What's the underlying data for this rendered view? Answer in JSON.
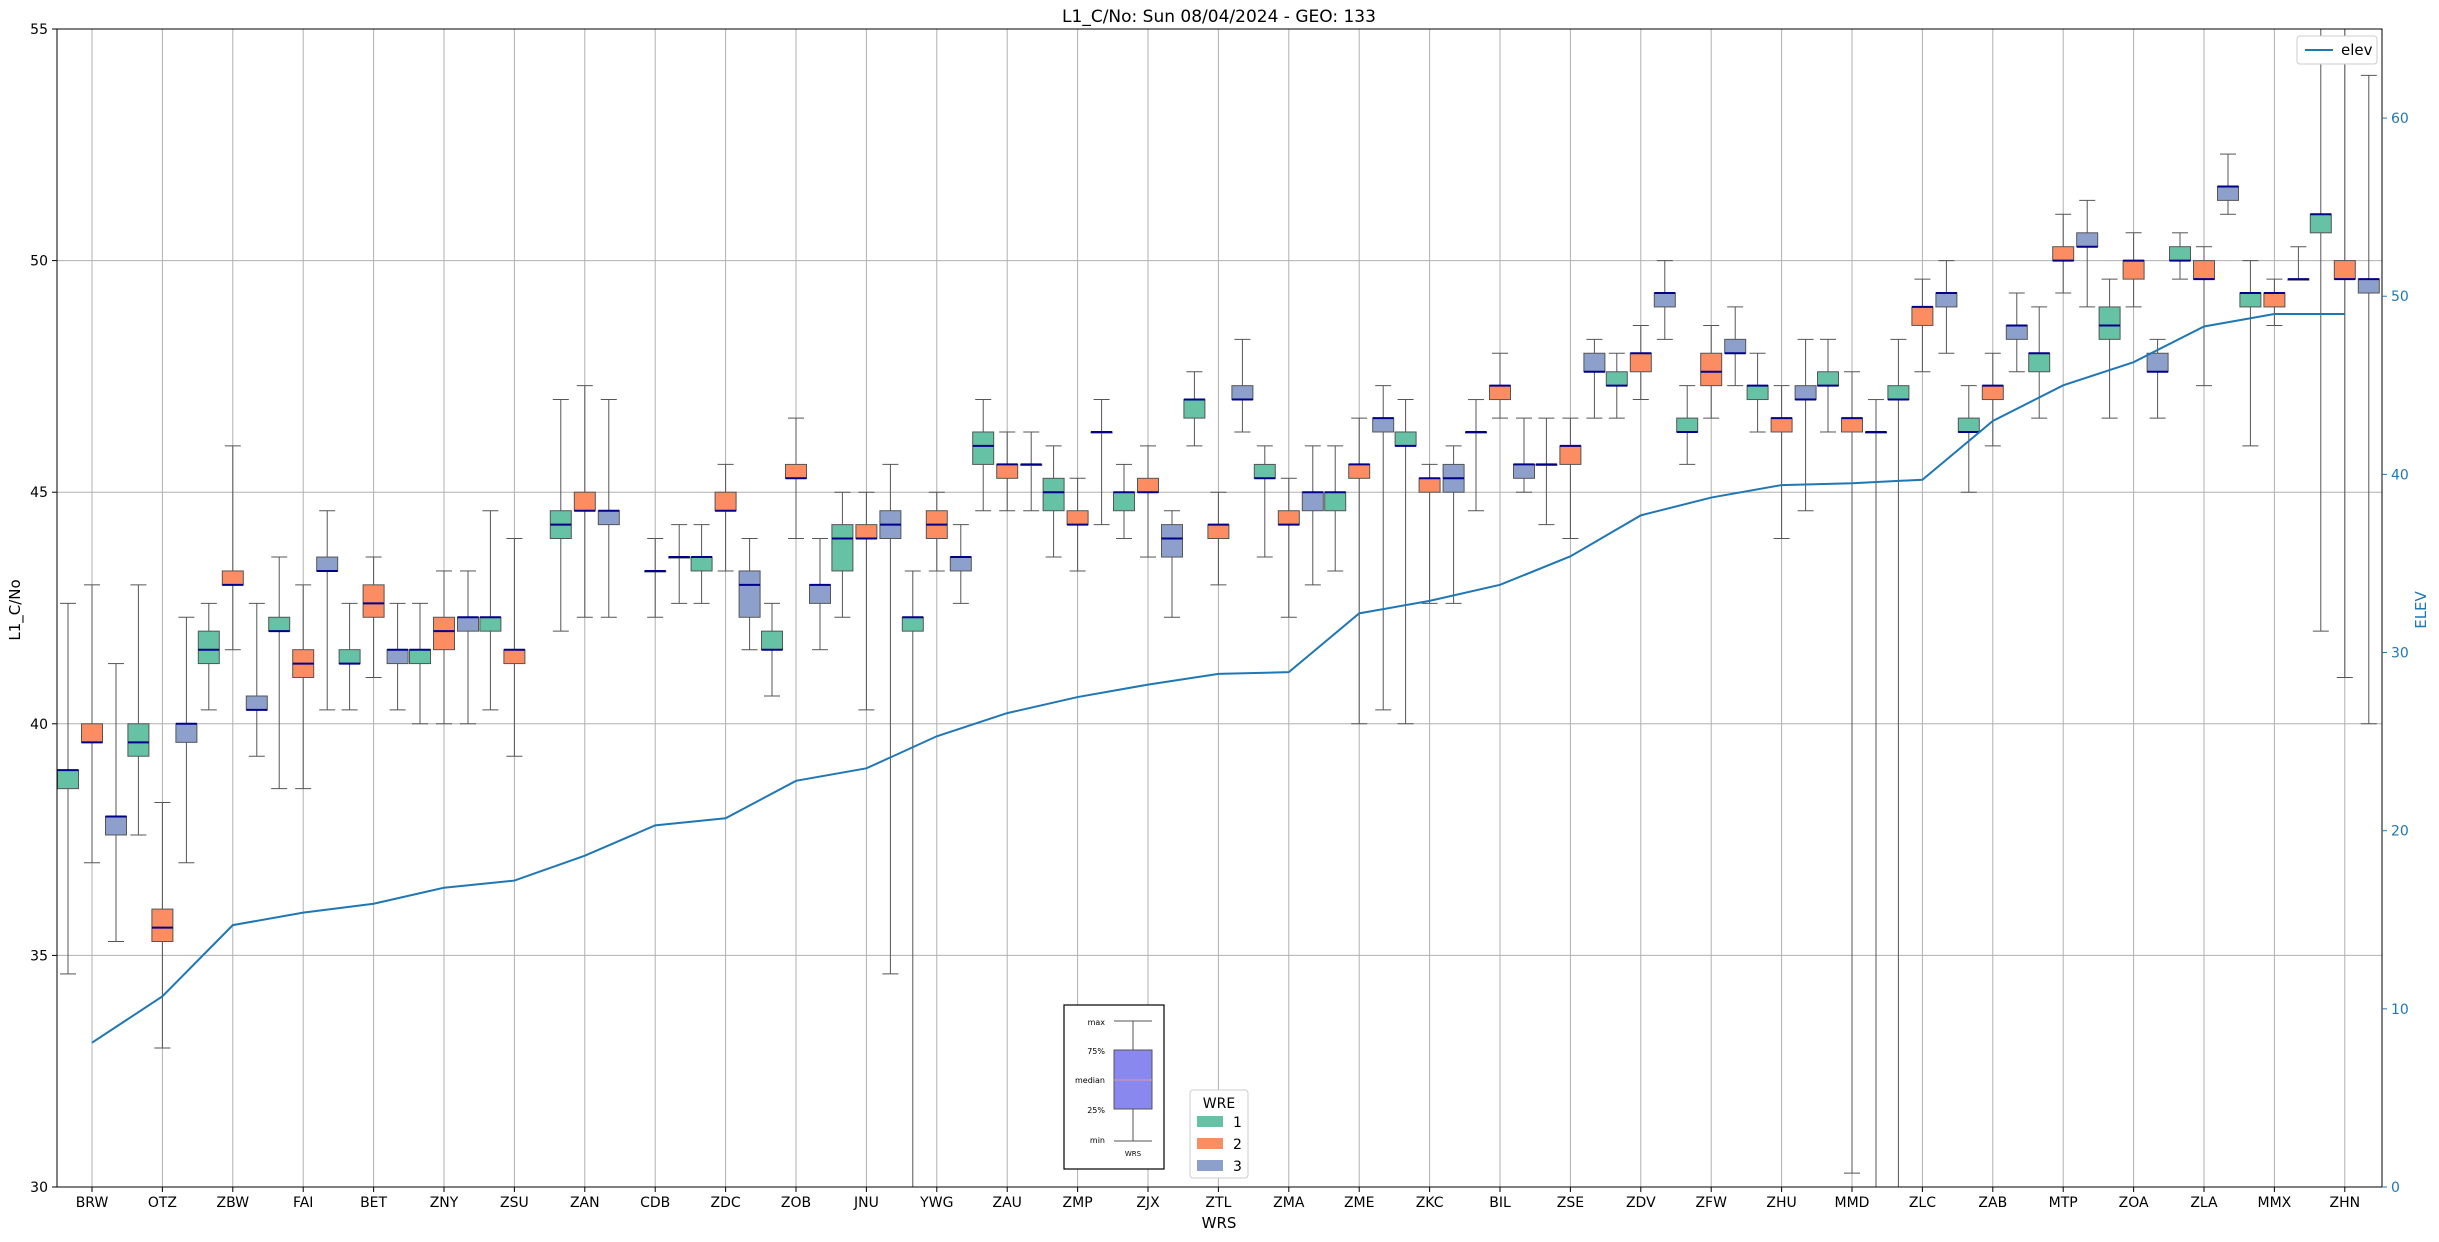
{
  "chart_data": {
    "type": "box",
    "title": "L1_C/No: Sun 08/04/2024 - GEO: 133",
    "xlabel": "WRS",
    "ylabel": "L1_C/No",
    "y2label": "ELEV",
    "ylim": [
      30,
      55
    ],
    "y2lim": [
      0,
      65
    ],
    "yticks": [
      30,
      35,
      40,
      45,
      50,
      55
    ],
    "y2ticks": [
      0,
      10,
      20,
      30,
      40,
      50,
      60
    ],
    "grid": true,
    "categories": [
      "BRW",
      "OTZ",
      "ZBW",
      "FAI",
      "BET",
      "ZNY",
      "ZSU",
      "ZAN",
      "CDB",
      "ZDC",
      "ZOB",
      "JNU",
      "YWG",
      "ZAU",
      "ZMP",
      "ZJX",
      "ZTL",
      "ZMA",
      "ZME",
      "ZKC",
      "BIL",
      "ZSE",
      "ZDV",
      "ZFW",
      "ZHU",
      "MMD",
      "ZLC",
      "ZAB",
      "MTP",
      "ZOA",
      "ZLA",
      "MMX",
      "ZHN"
    ],
    "wre_colors": {
      "1": "#66c2a5",
      "2": "#fc8d62",
      "3": "#8da0cb"
    },
    "median_color": "#00008b",
    "boxes": [
      {
        "cat": "BRW",
        "wre": 1,
        "min": 34.6,
        "q1": 38.6,
        "med": 39.0,
        "q3": 39.0,
        "max": 42.6
      },
      {
        "cat": "BRW",
        "wre": 2,
        "min": 37.0,
        "q1": 39.6,
        "med": 39.6,
        "q3": 40.0,
        "max": 43.0
      },
      {
        "cat": "BRW",
        "wre": 3,
        "min": 35.3,
        "q1": 37.6,
        "med": 38.0,
        "q3": 38.0,
        "max": 41.3
      },
      {
        "cat": "OTZ",
        "wre": 1,
        "min": 37.6,
        "q1": 39.3,
        "med": 39.6,
        "q3": 40.0,
        "max": 43.0
      },
      {
        "cat": "OTZ",
        "wre": 2,
        "min": 33.0,
        "q1": 35.3,
        "med": 35.6,
        "q3": 36.0,
        "max": 38.3
      },
      {
        "cat": "OTZ",
        "wre": 3,
        "min": 37.0,
        "q1": 39.6,
        "med": 40.0,
        "q3": 40.0,
        "max": 42.3
      },
      {
        "cat": "ZBW",
        "wre": 1,
        "min": 40.3,
        "q1": 41.3,
        "med": 41.6,
        "q3": 42.0,
        "max": 42.6
      },
      {
        "cat": "ZBW",
        "wre": 2,
        "min": 41.6,
        "q1": 43.0,
        "med": 43.0,
        "q3": 43.3,
        "max": 46.0
      },
      {
        "cat": "ZBW",
        "wre": 3,
        "min": 39.3,
        "q1": 40.3,
        "med": 40.3,
        "q3": 40.6,
        "max": 42.6
      },
      {
        "cat": "FAI",
        "wre": 1,
        "min": 38.6,
        "q1": 42.0,
        "med": 42.0,
        "q3": 42.3,
        "max": 43.6
      },
      {
        "cat": "FAI",
        "wre": 2,
        "min": 38.6,
        "q1": 41.0,
        "med": 41.3,
        "q3": 41.6,
        "max": 43.0
      },
      {
        "cat": "FAI",
        "wre": 3,
        "min": 40.3,
        "q1": 43.3,
        "med": 43.3,
        "q3": 43.6,
        "max": 44.6
      },
      {
        "cat": "BET",
        "wre": 1,
        "min": 40.3,
        "q1": 41.3,
        "med": 41.3,
        "q3": 41.6,
        "max": 42.6
      },
      {
        "cat": "BET",
        "wre": 2,
        "min": 41.0,
        "q1": 42.3,
        "med": 42.6,
        "q3": 43.0,
        "max": 43.6
      },
      {
        "cat": "BET",
        "wre": 3,
        "min": 40.3,
        "q1": 41.3,
        "med": 41.6,
        "q3": 41.6,
        "max": 42.6
      },
      {
        "cat": "ZNY",
        "wre": 1,
        "min": 40.0,
        "q1": 41.3,
        "med": 41.6,
        "q3": 41.6,
        "max": 42.6
      },
      {
        "cat": "ZNY",
        "wre": 2,
        "min": 40.0,
        "q1": 41.6,
        "med": 42.0,
        "q3": 42.3,
        "max": 43.3
      },
      {
        "cat": "ZNY",
        "wre": 3,
        "min": 40.0,
        "q1": 42.0,
        "med": 42.3,
        "q3": 42.3,
        "max": 43.3
      },
      {
        "cat": "ZSU",
        "wre": 1,
        "min": 40.3,
        "q1": 42.0,
        "med": 42.3,
        "q3": 42.3,
        "max": 44.6
      },
      {
        "cat": "ZSU",
        "wre": 2,
        "min": 39.3,
        "q1": 41.3,
        "med": 41.6,
        "q3": 41.6,
        "max": 44.0
      },
      {
        "cat": "ZAN",
        "wre": 1,
        "min": 42.0,
        "q1": 44.0,
        "med": 44.3,
        "q3": 44.6,
        "max": 47.0
      },
      {
        "cat": "ZAN",
        "wre": 2,
        "min": 42.3,
        "q1": 44.6,
        "med": 44.6,
        "q3": 45.0,
        "max": 47.3
      },
      {
        "cat": "ZAN",
        "wre": 3,
        "min": 42.3,
        "q1": 44.3,
        "med": 44.6,
        "q3": 44.6,
        "max": 47.0
      },
      {
        "cat": "CDB",
        "wre": 2,
        "min": 42.3,
        "q1": 43.3,
        "med": 43.3,
        "q3": 43.3,
        "max": 44.0
      },
      {
        "cat": "CDB",
        "wre": 3,
        "min": 42.6,
        "q1": 43.6,
        "med": 43.6,
        "q3": 43.6,
        "max": 44.3
      },
      {
        "cat": "ZDC",
        "wre": 1,
        "min": 42.6,
        "q1": 43.3,
        "med": 43.6,
        "q3": 43.6,
        "max": 44.3
      },
      {
        "cat": "ZDC",
        "wre": 2,
        "min": 43.3,
        "q1": 44.6,
        "med": 44.6,
        "q3": 45.0,
        "max": 45.6
      },
      {
        "cat": "ZDC",
        "wre": 3,
        "min": 41.6,
        "q1": 42.3,
        "med": 43.0,
        "q3": 43.3,
        "max": 44.0
      },
      {
        "cat": "ZOB",
        "wre": 1,
        "min": 40.6,
        "q1": 41.6,
        "med": 41.6,
        "q3": 42.0,
        "max": 42.6
      },
      {
        "cat": "ZOB",
        "wre": 2,
        "min": 44.0,
        "q1": 45.3,
        "med": 45.3,
        "q3": 45.6,
        "max": 46.6
      },
      {
        "cat": "ZOB",
        "wre": 3,
        "min": 41.6,
        "q1": 42.6,
        "med": 43.0,
        "q3": 43.0,
        "max": 44.0
      },
      {
        "cat": "JNU",
        "wre": 1,
        "min": 42.3,
        "q1": 43.3,
        "med": 44.0,
        "q3": 44.3,
        "max": 45.0
      },
      {
        "cat": "JNU",
        "wre": 2,
        "min": 40.3,
        "q1": 44.0,
        "med": 44.0,
        "q3": 44.3,
        "max": 45.0
      },
      {
        "cat": "JNU",
        "wre": 3,
        "min": 34.6,
        "q1": 44.0,
        "med": 44.3,
        "q3": 44.6,
        "max": 45.6
      },
      {
        "cat": "YWG",
        "wre": 1,
        "min": 30.0,
        "q1": 42.0,
        "med": 42.3,
        "q3": 42.3,
        "max": 43.3
      },
      {
        "cat": "YWG",
        "wre": 2,
        "min": 43.3,
        "q1": 44.0,
        "med": 44.3,
        "q3": 44.6,
        "max": 45.0
      },
      {
        "cat": "YWG",
        "wre": 3,
        "min": 42.6,
        "q1": 43.3,
        "med": 43.6,
        "q3": 43.6,
        "max": 44.3
      },
      {
        "cat": "ZAU",
        "wre": 1,
        "min": 44.6,
        "q1": 45.6,
        "med": 46.0,
        "q3": 46.3,
        "max": 47.0
      },
      {
        "cat": "ZAU",
        "wre": 2,
        "min": 44.6,
        "q1": 45.3,
        "med": 45.6,
        "q3": 45.6,
        "max": 46.3
      },
      {
        "cat": "ZAU",
        "wre": 3,
        "min": 44.6,
        "q1": 45.6,
        "med": 45.6,
        "q3": 45.6,
        "max": 46.3
      },
      {
        "cat": "ZMP",
        "wre": 1,
        "min": 43.6,
        "q1": 44.6,
        "med": 45.0,
        "q3": 45.3,
        "max": 46.0
      },
      {
        "cat": "ZMP",
        "wre": 2,
        "min": 43.3,
        "q1": 44.3,
        "med": 44.3,
        "q3": 44.6,
        "max": 45.3
      },
      {
        "cat": "ZMP",
        "wre": 3,
        "min": 44.3,
        "q1": 46.3,
        "med": 46.3,
        "q3": 46.3,
        "max": 47.0
      },
      {
        "cat": "ZJX",
        "wre": 1,
        "min": 44.0,
        "q1": 44.6,
        "med": 45.0,
        "q3": 45.0,
        "max": 45.6
      },
      {
        "cat": "ZJX",
        "wre": 2,
        "min": 43.6,
        "q1": 45.0,
        "med": 45.0,
        "q3": 45.3,
        "max": 46.0
      },
      {
        "cat": "ZJX",
        "wre": 3,
        "min": 42.3,
        "q1": 43.6,
        "med": 44.0,
        "q3": 44.3,
        "max": 44.6
      },
      {
        "cat": "ZTL",
        "wre": 1,
        "min": 46.0,
        "q1": 46.6,
        "med": 47.0,
        "q3": 47.0,
        "max": 47.6
      },
      {
        "cat": "ZTL",
        "wre": 2,
        "min": 43.0,
        "q1": 44.0,
        "med": 44.3,
        "q3": 44.3,
        "max": 45.0
      },
      {
        "cat": "ZTL",
        "wre": 3,
        "min": 46.3,
        "q1": 47.0,
        "med": 47.0,
        "q3": 47.3,
        "max": 48.3
      },
      {
        "cat": "ZMA",
        "wre": 1,
        "min": 43.6,
        "q1": 45.3,
        "med": 45.3,
        "q3": 45.6,
        "max": 46.0
      },
      {
        "cat": "ZMA",
        "wre": 2,
        "min": 42.3,
        "q1": 44.3,
        "med": 44.3,
        "q3": 44.6,
        "max": 45.3
      },
      {
        "cat": "ZMA",
        "wre": 3,
        "min": 43.0,
        "q1": 44.6,
        "med": 45.0,
        "q3": 45.0,
        "max": 46.0
      },
      {
        "cat": "ZME",
        "wre": 1,
        "min": 43.3,
        "q1": 44.6,
        "med": 45.0,
        "q3": 45.0,
        "max": 46.0
      },
      {
        "cat": "ZME",
        "wre": 2,
        "min": 40.0,
        "q1": 45.3,
        "med": 45.6,
        "q3": 45.6,
        "max": 46.6
      },
      {
        "cat": "ZME",
        "wre": 3,
        "min": 40.3,
        "q1": 46.3,
        "med": 46.6,
        "q3": 46.6,
        "max": 47.3
      },
      {
        "cat": "ZKC",
        "wre": 1,
        "min": 40.0,
        "q1": 46.0,
        "med": 46.0,
        "q3": 46.3,
        "max": 47.0
      },
      {
        "cat": "ZKC",
        "wre": 2,
        "min": 42.6,
        "q1": 45.0,
        "med": 45.3,
        "q3": 45.3,
        "max": 45.6
      },
      {
        "cat": "ZKC",
        "wre": 3,
        "min": 42.6,
        "q1": 45.0,
        "med": 45.3,
        "q3": 45.6,
        "max": 46.0
      },
      {
        "cat": "BIL",
        "wre": 1,
        "min": 44.6,
        "q1": 46.3,
        "med": 46.3,
        "q3": 46.3,
        "max": 47.0
      },
      {
        "cat": "BIL",
        "wre": 2,
        "min": 46.6,
        "q1": 47.0,
        "med": 47.3,
        "q3": 47.3,
        "max": 48.0
      },
      {
        "cat": "BIL",
        "wre": 3,
        "min": 45.0,
        "q1": 45.3,
        "med": 45.6,
        "q3": 45.6,
        "max": 46.6
      },
      {
        "cat": "ZSE",
        "wre": 1,
        "min": 44.3,
        "q1": 45.6,
        "med": 45.6,
        "q3": 45.6,
        "max": 46.6
      },
      {
        "cat": "ZSE",
        "wre": 2,
        "min": 44.0,
        "q1": 45.6,
        "med": 46.0,
        "q3": 46.0,
        "max": 46.6
      },
      {
        "cat": "ZSE",
        "wre": 3,
        "min": 46.6,
        "q1": 47.6,
        "med": 47.6,
        "q3": 48.0,
        "max": 48.3
      },
      {
        "cat": "ZDV",
        "wre": 1,
        "min": 46.6,
        "q1": 47.3,
        "med": 47.3,
        "q3": 47.6,
        "max": 48.0
      },
      {
        "cat": "ZDV",
        "wre": 2,
        "min": 47.0,
        "q1": 47.6,
        "med": 48.0,
        "q3": 48.0,
        "max": 48.6
      },
      {
        "cat": "ZDV",
        "wre": 3,
        "min": 48.3,
        "q1": 49.0,
        "med": 49.3,
        "q3": 49.3,
        "max": 50.0
      },
      {
        "cat": "ZFW",
        "wre": 1,
        "min": 45.6,
        "q1": 46.3,
        "med": 46.3,
        "q3": 46.6,
        "max": 47.3
      },
      {
        "cat": "ZFW",
        "wre": 2,
        "min": 46.6,
        "q1": 47.3,
        "med": 47.6,
        "q3": 48.0,
        "max": 48.6
      },
      {
        "cat": "ZFW",
        "wre": 3,
        "min": 47.3,
        "q1": 48.0,
        "med": 48.0,
        "q3": 48.3,
        "max": 49.0
      },
      {
        "cat": "ZHU",
        "wre": 1,
        "min": 46.3,
        "q1": 47.0,
        "med": 47.3,
        "q3": 47.3,
        "max": 48.0
      },
      {
        "cat": "ZHU",
        "wre": 2,
        "min": 44.0,
        "q1": 46.3,
        "med": 46.6,
        "q3": 46.6,
        "max": 47.3
      },
      {
        "cat": "ZHU",
        "wre": 3,
        "min": 44.6,
        "q1": 47.0,
        "med": 47.0,
        "q3": 47.3,
        "max": 48.3
      },
      {
        "cat": "MMD",
        "wre": 1,
        "min": 46.3,
        "q1": 47.3,
        "med": 47.3,
        "q3": 47.6,
        "max": 48.3
      },
      {
        "cat": "MMD",
        "wre": 2,
        "min": 30.3,
        "q1": 46.3,
        "med": 46.6,
        "q3": 46.6,
        "max": 47.6
      },
      {
        "cat": "MMD",
        "wre": 3,
        "min": 30.0,
        "q1": 46.3,
        "med": 46.3,
        "q3": 46.3,
        "max": 47.0
      },
      {
        "cat": "ZLC",
        "wre": 1,
        "min": 30.0,
        "q1": 47.0,
        "med": 47.0,
        "q3": 47.3,
        "max": 48.3
      },
      {
        "cat": "ZLC",
        "wre": 2,
        "min": 47.6,
        "q1": 48.6,
        "med": 49.0,
        "q3": 49.0,
        "max": 49.6
      },
      {
        "cat": "ZLC",
        "wre": 3,
        "min": 48.0,
        "q1": 49.0,
        "med": 49.3,
        "q3": 49.3,
        "max": 50.0
      },
      {
        "cat": "ZAB",
        "wre": 1,
        "min": 45.0,
        "q1": 46.3,
        "med": 46.3,
        "q3": 46.6,
        "max": 47.3
      },
      {
        "cat": "ZAB",
        "wre": 2,
        "min": 46.0,
        "q1": 47.0,
        "med": 47.3,
        "q3": 47.3,
        "max": 48.0
      },
      {
        "cat": "ZAB",
        "wre": 3,
        "min": 47.6,
        "q1": 48.3,
        "med": 48.6,
        "q3": 48.6,
        "max": 49.3
      },
      {
        "cat": "MTP",
        "wre": 1,
        "min": 46.6,
        "q1": 47.6,
        "med": 48.0,
        "q3": 48.0,
        "max": 49.0
      },
      {
        "cat": "MTP",
        "wre": 2,
        "min": 49.3,
        "q1": 50.0,
        "med": 50.0,
        "q3": 50.3,
        "max": 51.0
      },
      {
        "cat": "MTP",
        "wre": 3,
        "min": 49.0,
        "q1": 50.3,
        "med": 50.3,
        "q3": 50.6,
        "max": 51.3
      },
      {
        "cat": "ZOA",
        "wre": 1,
        "min": 46.6,
        "q1": 48.3,
        "med": 48.6,
        "q3": 49.0,
        "max": 49.6
      },
      {
        "cat": "ZOA",
        "wre": 2,
        "min": 49.0,
        "q1": 49.6,
        "med": 50.0,
        "q3": 50.0,
        "max": 50.6
      },
      {
        "cat": "ZOA",
        "wre": 3,
        "min": 46.6,
        "q1": 47.6,
        "med": 47.6,
        "q3": 48.0,
        "max": 48.3
      },
      {
        "cat": "ZLA",
        "wre": 1,
        "min": 49.6,
        "q1": 50.0,
        "med": 50.0,
        "q3": 50.3,
        "max": 50.6
      },
      {
        "cat": "ZLA",
        "wre": 2,
        "min": 47.3,
        "q1": 49.6,
        "med": 49.6,
        "q3": 50.0,
        "max": 50.3
      },
      {
        "cat": "ZLA",
        "wre": 3,
        "min": 51.0,
        "q1": 51.3,
        "med": 51.6,
        "q3": 51.6,
        "max": 52.3
      },
      {
        "cat": "MMX",
        "wre": 1,
        "min": 46.0,
        "q1": 49.0,
        "med": 49.3,
        "q3": 49.3,
        "max": 50.0
      },
      {
        "cat": "MMX",
        "wre": 2,
        "min": 48.6,
        "q1": 49.0,
        "med": 49.3,
        "q3": 49.3,
        "max": 49.6
      },
      {
        "cat": "MMX",
        "wre": 3,
        "min": 49.6,
        "q1": 49.6,
        "med": 49.6,
        "q3": 49.6,
        "max": 50.3
      },
      {
        "cat": "ZHN",
        "wre": 1,
        "min": 42.0,
        "q1": 50.6,
        "med": 51.0,
        "q3": 51.0,
        "max": 55.0
      },
      {
        "cat": "ZHN",
        "wre": 2,
        "min": 41.0,
        "q1": 49.6,
        "med": 49.6,
        "q3": 50.0,
        "max": 55.0
      },
      {
        "cat": "ZHN",
        "wre": 3,
        "min": 40.0,
        "q1": 49.3,
        "med": 49.6,
        "q3": 49.6,
        "max": 54.0
      }
    ],
    "elev_series": {
      "name": "elev",
      "color": "#1f77b4",
      "values": [
        8.1,
        10.7,
        14.7,
        15.4,
        15.9,
        16.8,
        17.2,
        18.6,
        20.3,
        20.7,
        22.8,
        23.5,
        25.3,
        26.6,
        27.5,
        28.2,
        28.8,
        28.9,
        32.2,
        32.9,
        33.8,
        35.4,
        37.7,
        38.7,
        39.4,
        39.5,
        39.7,
        43.0,
        45.0,
        46.3,
        48.3,
        49.0,
        49.0
      ]
    },
    "legend_elev": {
      "label": "elev",
      "position": "top-right"
    },
    "legend_wre": {
      "title": "WRE",
      "labels": [
        "1",
        "2",
        "3"
      ],
      "position": "bottom-center"
    },
    "inset_key": {
      "labels": [
        "max",
        "75%",
        "median",
        "25%",
        "min"
      ],
      "xlabel": "WRS"
    }
  }
}
